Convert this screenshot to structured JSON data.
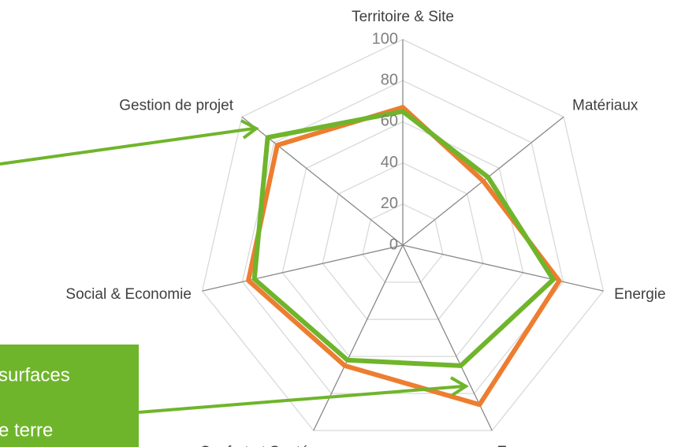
{
  "chart_data": {
    "type": "radar",
    "categories": [
      "Territoire & Site",
      "Matériaux",
      "Energie",
      "Eau",
      "Confort et Santé",
      "Social & Economie",
      "Gestion de projet"
    ],
    "series": [
      {
        "color": "#ed7d31",
        "values": [
          67,
          50,
          78,
          86,
          65,
          77,
          78
        ]
      },
      {
        "color": "#6fb52b",
        "values": [
          65,
          53,
          75,
          65,
          62,
          74,
          84
        ]
      }
    ],
    "ylim": [
      0,
      100
    ],
    "yticks": [
      0,
      20,
      40,
      60,
      80,
      100
    ],
    "grid": true,
    "annotations": [
      "surfaces",
      "e terre"
    ]
  }
}
